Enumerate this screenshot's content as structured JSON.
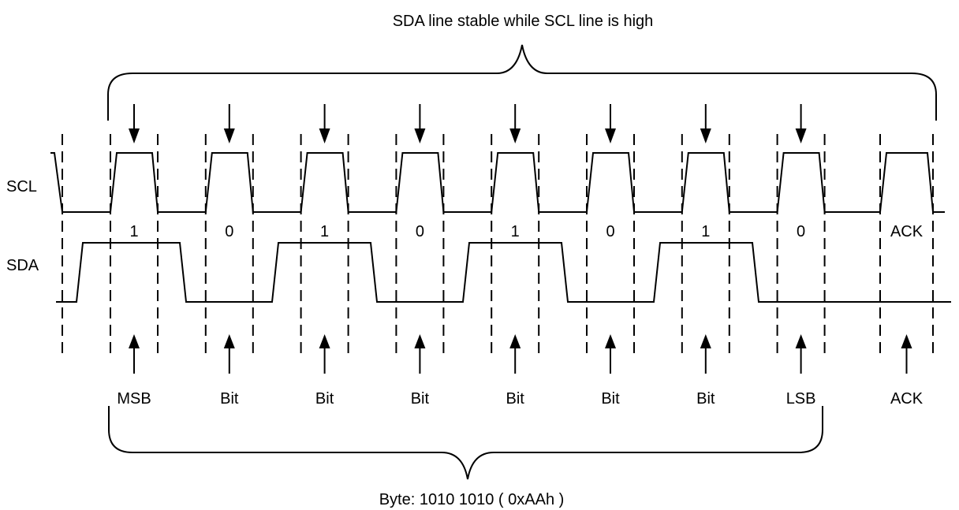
{
  "title_top": "SDA line stable while SCL line is high",
  "title_bottom": "Byte: 1010 1010 ( 0xAAh )",
  "signals": {
    "scl": "SCL",
    "sda": "SDA"
  },
  "bit_values": [
    "1",
    "0",
    "1",
    "0",
    "1",
    "0",
    "1",
    "0",
    "ACK"
  ],
  "bit_labels": [
    "MSB",
    "Bit",
    "Bit",
    "Bit",
    "Bit",
    "Bit",
    "Bit",
    "LSB",
    "ACK"
  ],
  "colors": {
    "line": "#000000",
    "background": "#ffffff"
  }
}
